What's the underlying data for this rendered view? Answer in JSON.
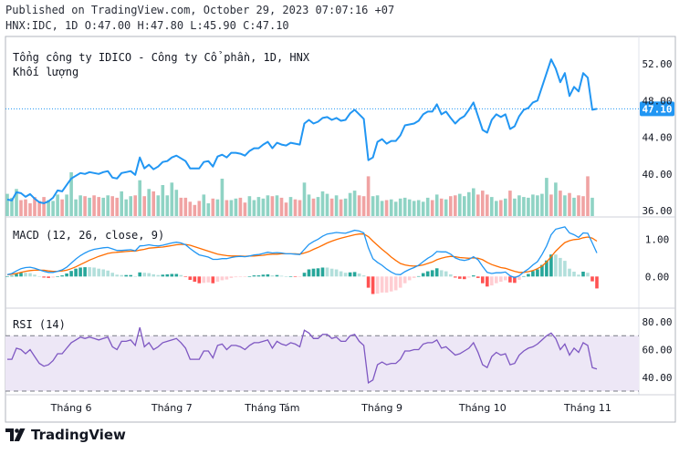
{
  "header": {
    "published": "Published on TradingView.com, October 29, 2023 07:07:16 +07",
    "ohlc": "HNX:IDC, 1D O:47.00 H:47.80 L:45.90 C:47.10"
  },
  "chart_data": [
    {
      "type": "line",
      "title": "Tổng công ty IDICO - Công ty Cổ phần, 1D, HNX",
      "subtitle": "Khối lượng",
      "x_ticks": [
        "Tháng 6",
        "Tháng 7",
        "Tháng Tám",
        "Tháng 9",
        "Tháng 10",
        "Tháng 11"
      ],
      "y_ticks": [
        "52.00",
        "48.00",
        "44.00",
        "40.00",
        "36.00"
      ],
      "ylim": [
        35.5,
        54.5
      ],
      "last_price_label": "47.10",
      "colors": {
        "line": "#2196f3",
        "up_volume": "#8fd3c4",
        "down_volume": "#f0a3a3",
        "last_price": "#2196f3"
      },
      "series": [
        {
          "values": [
            37.2,
            37.1,
            38.0,
            37.9,
            37.5,
            37.8,
            37.3,
            36.9,
            36.8,
            37.0,
            37.4,
            38.2,
            38.1,
            38.8,
            39.5,
            39.8,
            40.1,
            40.0,
            40.2,
            40.1,
            40.0,
            40.2,
            40.3,
            39.6,
            39.5,
            40.1,
            40.2,
            40.3,
            39.9,
            41.8,
            40.6,
            41.0,
            40.5,
            40.8,
            41.3,
            41.4,
            41.8,
            42.0,
            41.7,
            41.4,
            40.6,
            40.6,
            40.6,
            41.3,
            41.4,
            40.8,
            41.9,
            42.1,
            41.8,
            42.3,
            42.3,
            42.2,
            42.0,
            42.5,
            42.8,
            42.8,
            43.2,
            43.5,
            42.8,
            43.4,
            43.2,
            43.1,
            43.4,
            43.3,
            43.2,
            45.5,
            45.9,
            45.5,
            45.7,
            46.1,
            46.2,
            45.9,
            46.1,
            45.8,
            45.9,
            46.6,
            47.0,
            46.5,
            46.0,
            41.5,
            41.8,
            43.5,
            43.8,
            43.3,
            43.6,
            43.6,
            44.2,
            45.3,
            45.4,
            45.5,
            45.8,
            46.5,
            46.8,
            46.8,
            47.6,
            46.5,
            46.8,
            46.1,
            45.5,
            46.0,
            46.3,
            47.0,
            47.8,
            46.3,
            44.8,
            44.5,
            45.9,
            46.5,
            46.2,
            46.5,
            44.9,
            45.2,
            46.3,
            47.0,
            47.2,
            47.8,
            48.0,
            49.5,
            51.0,
            52.5,
            51.5,
            50.0,
            51.0,
            48.5,
            49.5,
            49.0,
            51.0,
            50.5,
            47.0,
            47.1
          ]
        }
      ],
      "volume": [
        {
          "v": 2.8,
          "up": true
        },
        {
          "v": 2.3,
          "up": true
        },
        {
          "v": 3.4,
          "up": true
        },
        {
          "v": 2.0,
          "up": false
        },
        {
          "v": 2.1,
          "up": false
        },
        {
          "v": 1.6,
          "up": false
        },
        {
          "v": 2.4,
          "up": false
        },
        {
          "v": 1.9,
          "up": false
        },
        {
          "v": 2.4,
          "up": false
        },
        {
          "v": 2.0,
          "up": true
        },
        {
          "v": 1.9,
          "up": true
        },
        {
          "v": 2.7,
          "up": true
        },
        {
          "v": 2.1,
          "up": false
        },
        {
          "v": 2.7,
          "up": true
        },
        {
          "v": 5.5,
          "up": true
        },
        {
          "v": 2.1,
          "up": true
        },
        {
          "v": 2.6,
          "up": true
        },
        {
          "v": 2.5,
          "up": false
        },
        {
          "v": 2.3,
          "up": true
        },
        {
          "v": 2.6,
          "up": false
        },
        {
          "v": 2.4,
          "up": false
        },
        {
          "v": 2.3,
          "up": true
        },
        {
          "v": 2.6,
          "up": true
        },
        {
          "v": 2.5,
          "up": false
        },
        {
          "v": 2.3,
          "up": false
        },
        {
          "v": 3.1,
          "up": true
        },
        {
          "v": 2.1,
          "up": true
        },
        {
          "v": 2.5,
          "up": true
        },
        {
          "v": 2.6,
          "up": false
        },
        {
          "v": 4.5,
          "up": true
        },
        {
          "v": 2.5,
          "up": false
        },
        {
          "v": 3.4,
          "up": true
        },
        {
          "v": 3.1,
          "up": false
        },
        {
          "v": 2.6,
          "up": true
        },
        {
          "v": 3.9,
          "up": true
        },
        {
          "v": 2.6,
          "up": true
        },
        {
          "v": 4.2,
          "up": true
        },
        {
          "v": 3.3,
          "up": true
        },
        {
          "v": 2.3,
          "up": false
        },
        {
          "v": 2.3,
          "up": false
        },
        {
          "v": 1.8,
          "up": false
        },
        {
          "v": 1.4,
          "up": false
        },
        {
          "v": 1.9,
          "up": false
        },
        {
          "v": 2.7,
          "up": true
        },
        {
          "v": 1.6,
          "up": true
        },
        {
          "v": 2.2,
          "up": false
        },
        {
          "v": 2.1,
          "up": true
        },
        {
          "v": 4.7,
          "up": true
        },
        {
          "v": 2.0,
          "up": false
        },
        {
          "v": 2.0,
          "up": true
        },
        {
          "v": 2.2,
          "up": true
        },
        {
          "v": 2.3,
          "up": false
        },
        {
          "v": 1.7,
          "up": false
        },
        {
          "v": 2.5,
          "up": true
        },
        {
          "v": 2.0,
          "up": true
        },
        {
          "v": 2.4,
          "up": true
        },
        {
          "v": 2.2,
          "up": true
        },
        {
          "v": 2.6,
          "up": true
        },
        {
          "v": 2.5,
          "up": false
        },
        {
          "v": 2.6,
          "up": true
        },
        {
          "v": 2.3,
          "up": false
        },
        {
          "v": 1.7,
          "up": false
        },
        {
          "v": 2.4,
          "up": true
        },
        {
          "v": 2.1,
          "up": false
        },
        {
          "v": 2.0,
          "up": false
        },
        {
          "v": 4.2,
          "up": true
        },
        {
          "v": 2.7,
          "up": true
        },
        {
          "v": 2.2,
          "up": false
        },
        {
          "v": 2.4,
          "up": true
        },
        {
          "v": 3.1,
          "up": true
        },
        {
          "v": 2.8,
          "up": true
        },
        {
          "v": 2.2,
          "up": false
        },
        {
          "v": 2.6,
          "up": true
        },
        {
          "v": 2.1,
          "up": false
        },
        {
          "v": 2.2,
          "up": true
        },
        {
          "v": 2.9,
          "up": true
        },
        {
          "v": 3.2,
          "up": true
        },
        {
          "v": 2.6,
          "up": false
        },
        {
          "v": 2.5,
          "up": false
        },
        {
          "v": 5.0,
          "up": false
        },
        {
          "v": 2.5,
          "up": true
        },
        {
          "v": 2.6,
          "up": true
        },
        {
          "v": 1.9,
          "up": true
        },
        {
          "v": 2.0,
          "up": false
        },
        {
          "v": 2.1,
          "up": true
        },
        {
          "v": 1.8,
          "up": true
        },
        {
          "v": 2.2,
          "up": true
        },
        {
          "v": 2.3,
          "up": true
        },
        {
          "v": 2.1,
          "up": true
        },
        {
          "v": 1.9,
          "up": true
        },
        {
          "v": 2.0,
          "up": true
        },
        {
          "v": 1.8,
          "up": true
        },
        {
          "v": 2.3,
          "up": true
        },
        {
          "v": 2.0,
          "up": false
        },
        {
          "v": 2.7,
          "up": true
        },
        {
          "v": 2.2,
          "up": false
        },
        {
          "v": 2.1,
          "up": true
        },
        {
          "v": 2.5,
          "up": false
        },
        {
          "v": 2.6,
          "up": false
        },
        {
          "v": 2.8,
          "up": true
        },
        {
          "v": 2.5,
          "up": true
        },
        {
          "v": 3.0,
          "up": true
        },
        {
          "v": 3.5,
          "up": true
        },
        {
          "v": 2.7,
          "up": false
        },
        {
          "v": 3.2,
          "up": false
        },
        {
          "v": 2.7,
          "up": false
        },
        {
          "v": 2.4,
          "up": true
        },
        {
          "v": 1.9,
          "up": true
        },
        {
          "v": 2.0,
          "up": false
        },
        {
          "v": 2.2,
          "up": true
        },
        {
          "v": 3.2,
          "up": false
        },
        {
          "v": 2.2,
          "up": true
        },
        {
          "v": 2.6,
          "up": true
        },
        {
          "v": 2.4,
          "up": true
        },
        {
          "v": 2.3,
          "up": true
        },
        {
          "v": 2.7,
          "up": true
        },
        {
          "v": 2.6,
          "up": true
        },
        {
          "v": 2.8,
          "up": true
        },
        {
          "v": 4.8,
          "up": true
        },
        {
          "v": 2.7,
          "up": false
        },
        {
          "v": 4.2,
          "up": true
        },
        {
          "v": 3.2,
          "up": false
        },
        {
          "v": 2.6,
          "up": true
        },
        {
          "v": 2.9,
          "up": false
        },
        {
          "v": 2.3,
          "up": true
        },
        {
          "v": 2.6,
          "up": false
        },
        {
          "v": 2.5,
          "up": false
        },
        {
          "v": 5.0,
          "up": false
        },
        {
          "v": 2.3,
          "up": true
        }
      ]
    },
    {
      "type": "line",
      "title": "MACD (12, 26, close, 9)",
      "y_ticks": [
        "1.00",
        "0.00"
      ],
      "ylim": [
        -0.75,
        1.45
      ],
      "colors": {
        "macd": "#2196f3",
        "signal": "#ff6d00",
        "hist_pos_strong": "#26a69a",
        "hist_pos_weak": "#b2dfdb",
        "hist_neg_strong": "#ff5252",
        "hist_neg_weak": "#ffcdd2"
      },
      "series": [
        {
          "name": "MACD",
          "values": [
            0.05,
            0.08,
            0.15,
            0.21,
            0.24,
            0.25,
            0.22,
            0.18,
            0.14,
            0.11,
            0.11,
            0.14,
            0.18,
            0.25,
            0.36,
            0.47,
            0.56,
            0.63,
            0.69,
            0.73,
            0.75,
            0.77,
            0.78,
            0.74,
            0.7,
            0.7,
            0.71,
            0.72,
            0.69,
            0.82,
            0.83,
            0.85,
            0.83,
            0.82,
            0.84,
            0.87,
            0.9,
            0.92,
            0.9,
            0.85,
            0.75,
            0.66,
            0.58,
            0.55,
            0.52,
            0.46,
            0.46,
            0.48,
            0.48,
            0.51,
            0.53,
            0.54,
            0.53,
            0.55,
            0.58,
            0.59,
            0.62,
            0.65,
            0.63,
            0.64,
            0.63,
            0.61,
            0.61,
            0.6,
            0.59,
            0.73,
            0.86,
            0.94,
            1.0,
            1.08,
            1.14,
            1.16,
            1.18,
            1.17,
            1.16,
            1.2,
            1.24,
            1.22,
            1.17,
            0.77,
            0.48,
            0.38,
            0.3,
            0.2,
            0.12,
            0.06,
            0.05,
            0.13,
            0.19,
            0.24,
            0.3,
            0.4,
            0.49,
            0.56,
            0.67,
            0.66,
            0.66,
            0.6,
            0.5,
            0.45,
            0.43,
            0.46,
            0.53,
            0.45,
            0.27,
            0.11,
            0.08,
            0.1,
            0.1,
            0.12,
            0.02,
            -0.03,
            0.02,
            0.12,
            0.2,
            0.31,
            0.4,
            0.59,
            0.82,
            1.12,
            1.27,
            1.3,
            1.33,
            1.17,
            1.12,
            1.05,
            1.17,
            1.16,
            0.9,
            0.63
          ]
        },
        {
          "name": "Signal",
          "values": [
            0.05,
            0.06,
            0.08,
            0.11,
            0.14,
            0.16,
            0.17,
            0.17,
            0.17,
            0.15,
            0.14,
            0.14,
            0.15,
            0.17,
            0.21,
            0.26,
            0.32,
            0.38,
            0.44,
            0.49,
            0.54,
            0.58,
            0.62,
            0.64,
            0.65,
            0.66,
            0.67,
            0.68,
            0.68,
            0.71,
            0.73,
            0.76,
            0.77,
            0.78,
            0.79,
            0.81,
            0.83,
            0.85,
            0.86,
            0.86,
            0.84,
            0.8,
            0.76,
            0.72,
            0.68,
            0.64,
            0.6,
            0.58,
            0.56,
            0.55,
            0.55,
            0.55,
            0.54,
            0.55,
            0.55,
            0.56,
            0.57,
            0.59,
            0.6,
            0.6,
            0.61,
            0.61,
            0.61,
            0.61,
            0.6,
            0.63,
            0.67,
            0.73,
            0.78,
            0.84,
            0.9,
            0.95,
            0.99,
            1.03,
            1.06,
            1.09,
            1.12,
            1.14,
            1.14,
            1.07,
            0.95,
            0.84,
            0.73,
            0.63,
            0.52,
            0.43,
            0.35,
            0.31,
            0.29,
            0.28,
            0.29,
            0.31,
            0.35,
            0.39,
            0.45,
            0.49,
            0.52,
            0.54,
            0.53,
            0.51,
            0.5,
            0.49,
            0.5,
            0.49,
            0.45,
            0.38,
            0.32,
            0.28,
            0.24,
            0.22,
            0.18,
            0.14,
            0.11,
            0.11,
            0.13,
            0.16,
            0.21,
            0.28,
            0.39,
            0.53,
            0.68,
            0.8,
            0.91,
            0.96,
            0.99,
            1.0,
            1.04,
            1.06,
            1.03,
            0.95
          ]
        }
      ]
    },
    {
      "type": "line",
      "title": "RSI (14)",
      "y_ticks": [
        "80.00",
        "60.00",
        "40.00"
      ],
      "ylim": [
        28,
        88
      ],
      "bands": [
        70,
        30
      ],
      "colors": {
        "line": "#7e57c2",
        "band_fill": "#ede7f6",
        "band_line": "#787b86"
      },
      "series": [
        {
          "name": "RSI",
          "values": [
            53,
            53,
            61,
            60,
            57,
            60,
            55,
            50,
            48,
            49,
            52,
            57,
            57,
            61,
            65,
            67,
            69,
            68,
            69,
            68,
            67,
            68,
            69,
            62,
            60,
            66,
            66,
            67,
            63,
            76,
            62,
            65,
            60,
            62,
            65,
            66,
            67,
            68,
            65,
            61,
            53,
            53,
            53,
            59,
            59,
            54,
            63,
            64,
            60,
            63,
            63,
            62,
            60,
            63,
            65,
            65,
            66,
            67,
            61,
            66,
            64,
            63,
            65,
            64,
            62,
            74,
            72,
            68,
            68,
            71,
            71,
            68,
            69,
            66,
            66,
            70,
            71,
            66,
            63,
            36,
            38,
            49,
            51,
            49,
            50,
            50,
            53,
            59,
            59,
            60,
            60,
            64,
            65,
            65,
            67,
            61,
            62,
            59,
            56,
            57,
            59,
            61,
            65,
            58,
            49,
            47,
            55,
            58,
            56,
            57,
            49,
            50,
            56,
            59,
            61,
            62,
            64,
            67,
            70,
            72,
            68,
            60,
            64,
            56,
            61,
            58,
            65,
            63,
            47,
            46
          ]
        }
      ]
    }
  ],
  "footer": {
    "brand": "TradingView"
  }
}
